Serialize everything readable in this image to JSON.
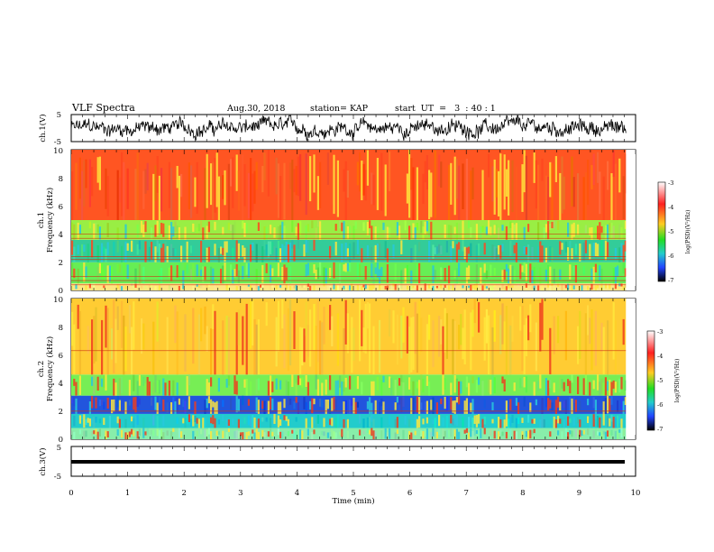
{
  "header": {
    "title": "VLF Spectra",
    "date": "Aug.30, 2018",
    "station": "station= KAP",
    "start": "start  UT  =   3  : 40 : 1"
  },
  "chart_data": [
    {
      "type": "line",
      "panel": "ch1-waveform",
      "ylabel": "ch.1(V)",
      "ylim": [
        -5,
        5
      ],
      "yticks": [
        "5",
        "-5"
      ],
      "xlim": [
        0,
        10
      ],
      "trace": "noisy waveform, roughly between -4 and 4 V, ends near 9.8 min"
    },
    {
      "type": "heatmap",
      "panel": "ch1-spectrogram",
      "ylabel": "ch.1\nFrequency (kHz)",
      "ylim": [
        0,
        10
      ],
      "yticks": [
        "0",
        "2",
        "4",
        "6",
        "8",
        "10"
      ],
      "xlim": [
        0,
        9.83
      ],
      "bands": [
        {
          "from_khz": 0.0,
          "to_khz": 0.5,
          "color": "#ffe680",
          "note": "horizontal interference lines"
        },
        {
          "from_khz": 0.5,
          "to_khz": 2.0,
          "color": "#66ee55"
        },
        {
          "from_khz": 2.0,
          "to_khz": 3.6,
          "color": "#33cc99"
        },
        {
          "from_khz": 3.6,
          "to_khz": 5.0,
          "color": "#99ee44"
        },
        {
          "from_khz": 5.0,
          "to_khz": 10.0,
          "color": "#ff5522"
        }
      ],
      "lines_khz": [
        0.4,
        0.7,
        1.0,
        2.2,
        2.4,
        3.7,
        4.0
      ]
    },
    {
      "type": "heatmap",
      "panel": "ch2-spectrogram",
      "ylabel": "ch.2\nFrequency (kHz)",
      "ylim": [
        0,
        10
      ],
      "yticks": [
        "0",
        "2",
        "4",
        "6",
        "8",
        "10"
      ],
      "xlim": [
        0,
        9.83
      ],
      "bands": [
        {
          "from_khz": 0.0,
          "to_khz": 0.8,
          "color": "#88eeaa"
        },
        {
          "from_khz": 0.8,
          "to_khz": 1.8,
          "color": "#22cccc"
        },
        {
          "from_khz": 1.8,
          "to_khz": 3.1,
          "color": "#2255dd"
        },
        {
          "from_khz": 3.1,
          "to_khz": 4.6,
          "color": "#77ee55"
        },
        {
          "from_khz": 4.6,
          "to_khz": 10.0,
          "color": "#ffcc33"
        }
      ],
      "lines_khz": [
        2.0,
        6.3
      ]
    },
    {
      "type": "line",
      "panel": "ch3-waveform",
      "ylabel": "ch.3(V)",
      "ylim": [
        -5,
        5
      ],
      "yticks": [
        "5",
        "-5"
      ],
      "xlabel": "Time (min)",
      "xlim": [
        0,
        10
      ],
      "xticks": [
        "0",
        "1",
        "2",
        "3",
        "4",
        "5",
        "6",
        "7",
        "8",
        "9",
        "10"
      ],
      "trace": "flat thick line near -1 V"
    }
  ],
  "colorbar": {
    "ticks": [
      "-3",
      "-4",
      "-5",
      "-6",
      "-7"
    ],
    "label": "log(PSD)(V²/Hz)",
    "stops": [
      "#ffffff",
      "#ff2020",
      "#ffcc22",
      "#22dd22",
      "#22cccc",
      "#2244ff",
      "#000000"
    ]
  }
}
